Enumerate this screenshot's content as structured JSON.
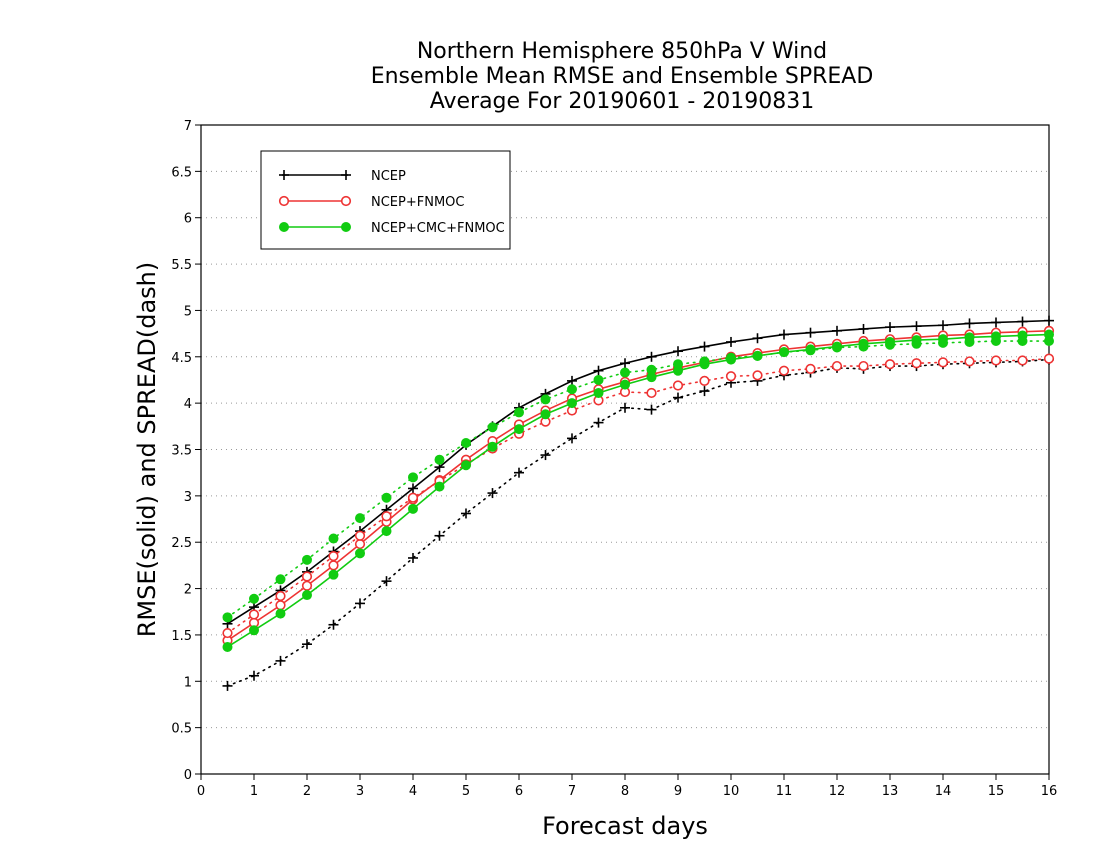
{
  "chart_data": {
    "type": "line",
    "title_lines": [
      "Northern Hemisphere 850hPa V Wind",
      "Ensemble Mean RMSE and Ensemble SPREAD",
      "Average For 20190601 - 20190831"
    ],
    "xlabel": "Forecast days",
    "ylabel": "RMSE(solid) and SPREAD(dash)",
    "xlim": [
      0,
      16
    ],
    "ylim": [
      0,
      7
    ],
    "xticks": [
      "0",
      "1",
      "2",
      "3",
      "4",
      "5",
      "6",
      "7",
      "8",
      "9",
      "10",
      "11",
      "12",
      "13",
      "14",
      "15",
      "16"
    ],
    "yticks": [
      "0",
      "0.5",
      "1",
      "1.5",
      "2",
      "2.5",
      "3",
      "3.5",
      "4",
      "4.5",
      "5",
      "5.5",
      "6",
      "6.5",
      "7"
    ],
    "grid": "horizontal-dotted",
    "legend_position": "top-left",
    "x": [
      0.5,
      1,
      1.5,
      2,
      2.5,
      3,
      3.5,
      4,
      4.5,
      5,
      5.5,
      6,
      6.5,
      7,
      7.5,
      8,
      8.5,
      9,
      9.5,
      10,
      10.5,
      11,
      11.5,
      12,
      12.5,
      13,
      13.5,
      14,
      14.5,
      15,
      15.5,
      16
    ],
    "series": [
      {
        "name": "NCEP",
        "marker": "plus",
        "color": "#000000",
        "rmse": [
          1.62,
          1.8,
          1.98,
          2.18,
          2.4,
          2.62,
          2.85,
          3.08,
          3.31,
          3.55,
          3.75,
          3.95,
          4.1,
          4.24,
          4.35,
          4.43,
          4.5,
          4.56,
          4.61,
          4.66,
          4.7,
          4.74,
          4.76,
          4.78,
          4.8,
          4.82,
          4.83,
          4.84,
          4.86,
          4.87,
          4.88,
          4.89
        ],
        "spread": [
          0.95,
          1.06,
          1.22,
          1.4,
          1.61,
          1.84,
          2.08,
          2.33,
          2.57,
          2.81,
          3.03,
          3.25,
          3.44,
          3.62,
          3.79,
          3.95,
          3.93,
          4.06,
          4.13,
          4.22,
          4.24,
          4.3,
          4.33,
          4.38,
          4.37,
          4.4,
          4.4,
          4.42,
          4.43,
          4.44,
          4.45,
          4.47
        ]
      },
      {
        "name": "NCEP+FNMOC",
        "marker": "open-circle",
        "color": "#ee3333",
        "rmse": [
          1.44,
          1.63,
          1.82,
          2.03,
          2.25,
          2.48,
          2.72,
          2.96,
          3.17,
          3.39,
          3.59,
          3.77,
          3.92,
          4.05,
          4.15,
          4.23,
          4.31,
          4.38,
          4.44,
          4.5,
          4.54,
          4.58,
          4.61,
          4.64,
          4.67,
          4.69,
          4.71,
          4.73,
          4.74,
          4.76,
          4.77,
          4.78
        ],
        "spread": [
          1.52,
          1.72,
          1.92,
          2.13,
          2.35,
          2.57,
          2.78,
          2.98,
          3.16,
          3.34,
          3.51,
          3.67,
          3.8,
          3.92,
          4.03,
          4.12,
          4.11,
          4.19,
          4.24,
          4.29,
          4.3,
          4.35,
          4.37,
          4.4,
          4.4,
          4.42,
          4.43,
          4.44,
          4.45,
          4.46,
          4.46,
          4.48
        ]
      },
      {
        "name": "NCEP+CMC+FNMOC",
        "marker": "filled-circle",
        "color": "#11cc11",
        "rmse": [
          1.37,
          1.55,
          1.73,
          1.93,
          2.15,
          2.38,
          2.62,
          2.86,
          3.1,
          3.33,
          3.53,
          3.72,
          3.88,
          4.0,
          4.11,
          4.2,
          4.28,
          4.35,
          4.42,
          4.47,
          4.51,
          4.55,
          4.58,
          4.61,
          4.64,
          4.66,
          4.68,
          4.69,
          4.71,
          4.72,
          4.73,
          4.74
        ],
        "spread": [
          1.69,
          1.89,
          2.1,
          2.31,
          2.54,
          2.76,
          2.98,
          3.2,
          3.39,
          3.57,
          3.74,
          3.9,
          4.04,
          4.15,
          4.25,
          4.33,
          4.36,
          4.42,
          4.45,
          4.49,
          4.51,
          4.55,
          4.57,
          4.6,
          4.61,
          4.63,
          4.64,
          4.65,
          4.66,
          4.67,
          4.67,
          4.67
        ]
      }
    ]
  }
}
